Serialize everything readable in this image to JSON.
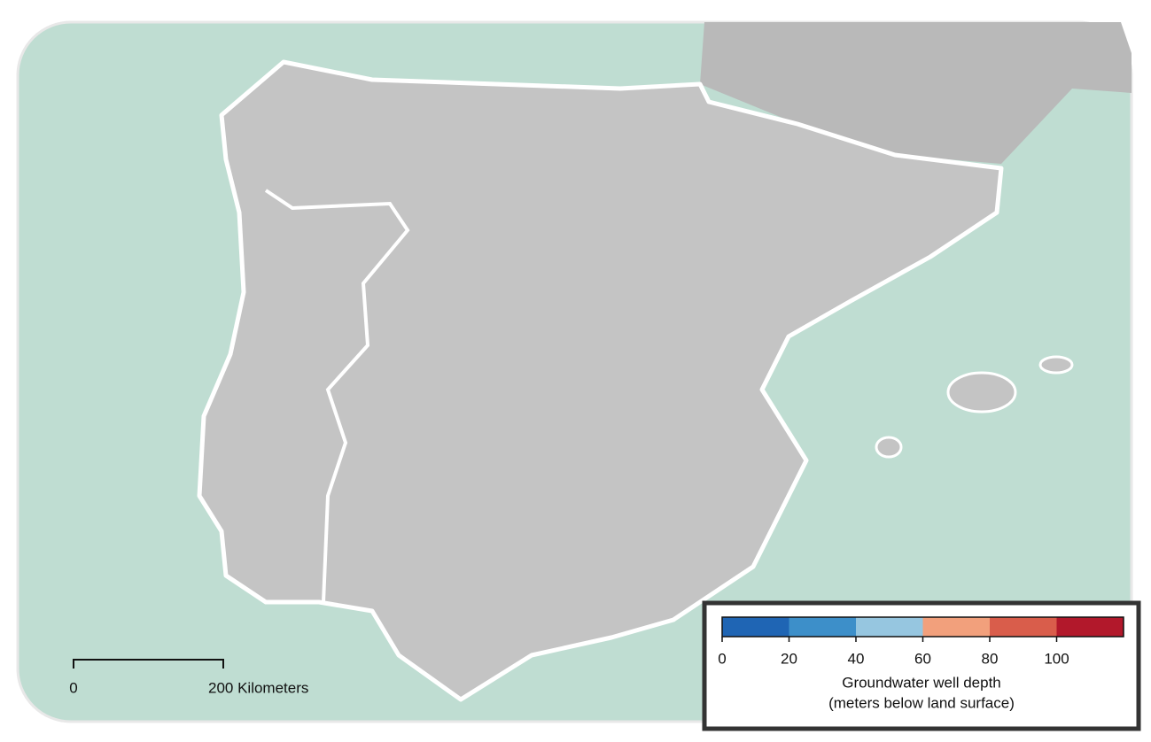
{
  "map": {
    "legend": {
      "title": [
        "Groundwater well depth",
        "(meters below land surface)"
      ],
      "ticks": [
        0,
        20,
        40,
        60,
        80,
        100
      ],
      "range": [
        0,
        120
      ],
      "colors": [
        "#1f65b4",
        "#3d8fc9",
        "#96c6e0",
        "#f2a07c",
        "#d95d4b",
        "#b2182b"
      ]
    },
    "scale_bar": {
      "labels": [
        "0",
        "200 Kilometers"
      ]
    }
  }
}
